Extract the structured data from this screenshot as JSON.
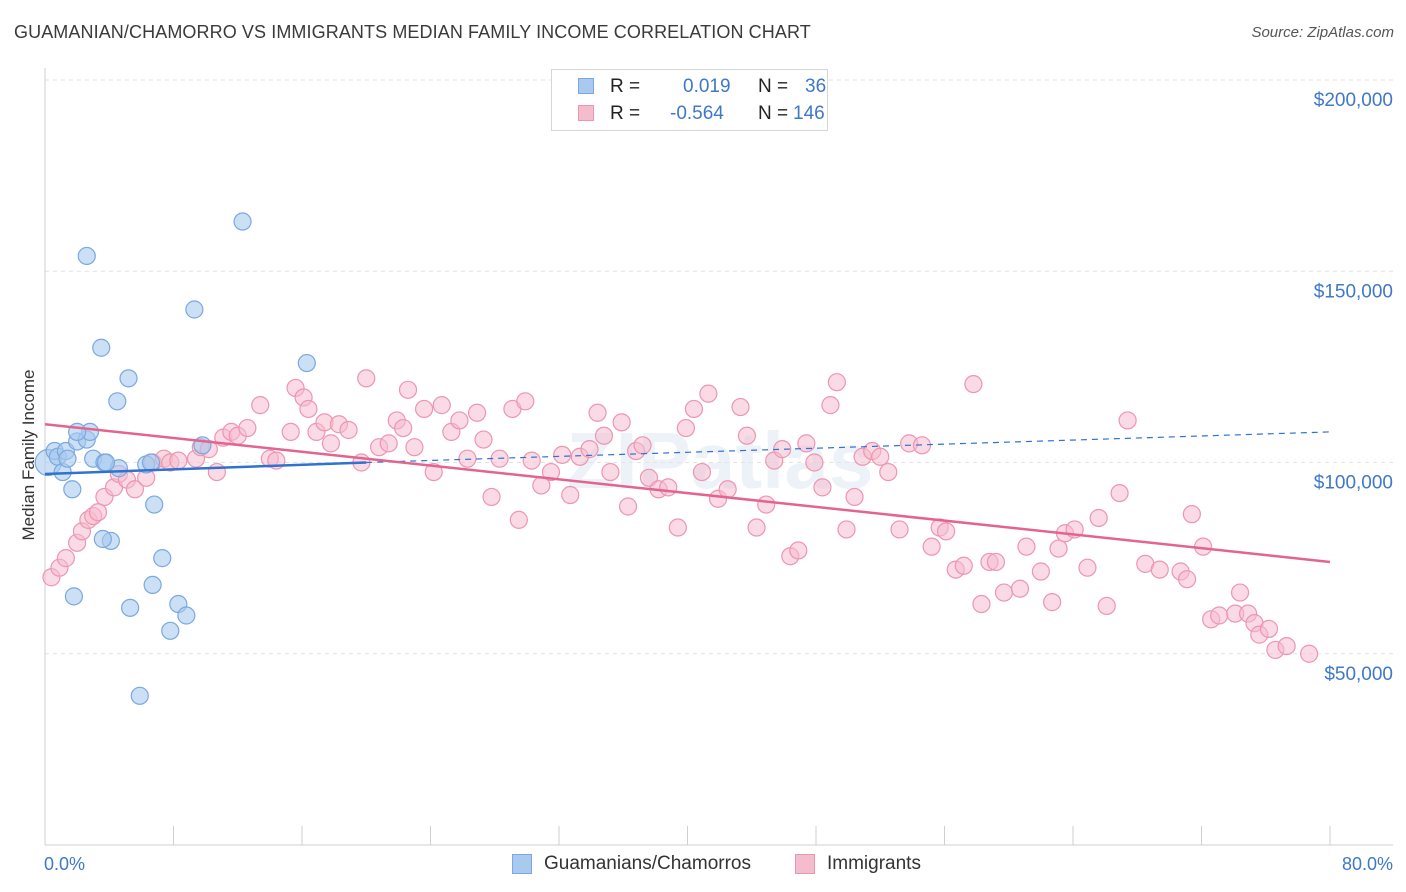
{
  "title": "GUAMANIAN/CHAMORRO VS IMMIGRANTS MEDIAN FAMILY INCOME CORRELATION CHART",
  "source": "Source: ZipAtlas.com",
  "watermark": "ZIPatlas",
  "legend": {
    "rows": [
      {
        "r_label": "R =",
        "r_value": "0.019",
        "n_label": "N =",
        "n_value": "36"
      },
      {
        "r_label": "R =",
        "r_value": "-0.564",
        "n_label": "N =",
        "n_value": "146"
      }
    ]
  },
  "bottom_legend": [
    "Guamanians/Chamorros",
    "Immigrants"
  ],
  "colors": {
    "blue_fill": "#a9c9ef",
    "blue_stroke": "#7aa8e0",
    "blue_line": "#2f72d0",
    "pink_fill": "#f5bccd",
    "pink_stroke": "#ee95b1",
    "pink_line": "#e2648f",
    "tick_text": "#3f78c8",
    "grid": "#e2e2e2"
  },
  "chart_data": {
    "type": "scatter",
    "title": "GUAMANIAN/CHAMORRO VS IMMIGRANTS MEDIAN FAMILY INCOME CORRELATION CHART",
    "xlabel": "",
    "ylabel": "Median Family Income",
    "xlim": [
      0,
      80
    ],
    "ylim": [
      0,
      210000
    ],
    "x_tick_labels": [
      "0.0%",
      "80.0%"
    ],
    "y_ticks": [
      {
        "value": 50000,
        "label": "$50,000"
      },
      {
        "value": 100000,
        "label": "$100,000"
      },
      {
        "value": 150000,
        "label": "$150,000"
      },
      {
        "value": 200000,
        "label": "$200,000"
      }
    ],
    "grid": true,
    "series": [
      {
        "name": "Guamanians/Chamorros",
        "R": 0.019,
        "N": 36,
        "trend": {
          "x0": 0,
          "y0": 97000,
          "x1": 20,
          "y1": 100000,
          "dash_to_x": 80,
          "dash_to_y": 108000
        },
        "points": [
          [
            0.2,
            100000
          ],
          [
            0.6,
            103000
          ],
          [
            0.8,
            101500
          ],
          [
            1.1,
            97500
          ],
          [
            1.3,
            103000
          ],
          [
            1.7,
            93000
          ],
          [
            2.0,
            105500
          ],
          [
            1.4,
            101000
          ],
          [
            2.6,
            106000
          ],
          [
            2.8,
            108000
          ],
          [
            3.0,
            101000
          ],
          [
            2.0,
            108000
          ],
          [
            3.7,
            100000
          ],
          [
            4.6,
            98500
          ],
          [
            4.5,
            116000
          ],
          [
            5.2,
            122000
          ],
          [
            6.3,
            99500
          ],
          [
            6.8,
            89000
          ],
          [
            9.8,
            104500
          ],
          [
            7.3,
            75000
          ],
          [
            8.3,
            63000
          ],
          [
            6.7,
            68000
          ],
          [
            4.1,
            79500
          ],
          [
            3.8,
            100000
          ],
          [
            3.6,
            80000
          ],
          [
            1.8,
            65000
          ],
          [
            5.3,
            62000
          ],
          [
            8.8,
            60000
          ],
          [
            7.8,
            56000
          ],
          [
            5.9,
            39000
          ],
          [
            3.5,
            130000
          ],
          [
            9.3,
            140000
          ],
          [
            12.3,
            163000
          ],
          [
            2.6,
            154000
          ],
          [
            16.3,
            126000
          ],
          [
            6.6,
            100000
          ]
        ]
      },
      {
        "name": "Immigrants",
        "R": -0.564,
        "N": 146,
        "trend": {
          "x0": 0,
          "y0": 110000,
          "x1": 80,
          "y1": 74000
        },
        "points": [
          [
            0.4,
            70000
          ],
          [
            0.9,
            72500
          ],
          [
            1.3,
            75000
          ],
          [
            2.0,
            79000
          ],
          [
            2.3,
            82000
          ],
          [
            2.7,
            85000
          ],
          [
            3.0,
            86000
          ],
          [
            3.3,
            87000
          ],
          [
            3.7,
            91000
          ],
          [
            4.3,
            93500
          ],
          [
            4.6,
            97000
          ],
          [
            5.1,
            95500
          ],
          [
            5.6,
            93000
          ],
          [
            6.3,
            96000
          ],
          [
            6.7,
            100000
          ],
          [
            7.4,
            101000
          ],
          [
            7.8,
            100000
          ],
          [
            8.3,
            100500
          ],
          [
            9.4,
            101000
          ],
          [
            9.7,
            104000
          ],
          [
            10.2,
            103500
          ],
          [
            10.7,
            97500
          ],
          [
            11.1,
            106500
          ],
          [
            11.6,
            108000
          ],
          [
            12.0,
            107000
          ],
          [
            12.6,
            109000
          ],
          [
            13.4,
            115000
          ],
          [
            14.0,
            101000
          ],
          [
            14.4,
            100500
          ],
          [
            15.3,
            108000
          ],
          [
            15.6,
            119500
          ],
          [
            16.1,
            117000
          ],
          [
            16.4,
            114000
          ],
          [
            16.9,
            108000
          ],
          [
            17.4,
            110500
          ],
          [
            17.8,
            105000
          ],
          [
            18.3,
            110000
          ],
          [
            18.9,
            108500
          ],
          [
            19.7,
            100000
          ],
          [
            20.0,
            122000
          ],
          [
            20.8,
            104000
          ],
          [
            21.4,
            105000
          ],
          [
            21.9,
            111000
          ],
          [
            22.3,
            109000
          ],
          [
            22.6,
            119000
          ],
          [
            23.0,
            104000
          ],
          [
            23.6,
            114000
          ],
          [
            24.2,
            97500
          ],
          [
            24.7,
            115000
          ],
          [
            25.3,
            108000
          ],
          [
            25.8,
            111000
          ],
          [
            26.3,
            101000
          ],
          [
            26.9,
            113000
          ],
          [
            27.3,
            106000
          ],
          [
            27.8,
            91000
          ],
          [
            28.3,
            101000
          ],
          [
            29.1,
            114000
          ],
          [
            29.5,
            85000
          ],
          [
            29.9,
            116000
          ],
          [
            30.3,
            100500
          ],
          [
            30.9,
            94000
          ],
          [
            31.5,
            97500
          ],
          [
            32.2,
            102000
          ],
          [
            32.7,
            91500
          ],
          [
            33.3,
            101500
          ],
          [
            33.9,
            103500
          ],
          [
            34.4,
            113000
          ],
          [
            34.8,
            107000
          ],
          [
            35.2,
            97500
          ],
          [
            35.9,
            110500
          ],
          [
            36.3,
            88500
          ],
          [
            36.8,
            103000
          ],
          [
            37.2,
            104500
          ],
          [
            37.6,
            96000
          ],
          [
            38.2,
            93000
          ],
          [
            38.8,
            93500
          ],
          [
            39.4,
            83000
          ],
          [
            39.9,
            109000
          ],
          [
            40.4,
            114000
          ],
          [
            40.9,
            97500
          ],
          [
            41.3,
            118000
          ],
          [
            41.9,
            90500
          ],
          [
            42.5,
            93000
          ],
          [
            43.3,
            114500
          ],
          [
            43.7,
            107000
          ],
          [
            44.3,
            83000
          ],
          [
            44.9,
            89000
          ],
          [
            45.4,
            100500
          ],
          [
            45.9,
            103500
          ],
          [
            46.4,
            75500
          ],
          [
            46.9,
            77000
          ],
          [
            47.4,
            105000
          ],
          [
            47.9,
            100000
          ],
          [
            48.4,
            93500
          ],
          [
            48.9,
            115000
          ],
          [
            49.3,
            121000
          ],
          [
            49.9,
            82500
          ],
          [
            50.4,
            91000
          ],
          [
            50.9,
            101500
          ],
          [
            51.5,
            103000
          ],
          [
            52.0,
            101500
          ],
          [
            52.5,
            97500
          ],
          [
            53.2,
            82500
          ],
          [
            53.8,
            105000
          ],
          [
            54.6,
            104500
          ],
          [
            55.2,
            78000
          ],
          [
            55.7,
            83000
          ],
          [
            56.1,
            82000
          ],
          [
            56.7,
            72000
          ],
          [
            57.2,
            73000
          ],
          [
            57.8,
            120500
          ],
          [
            58.3,
            63000
          ],
          [
            58.8,
            74000
          ],
          [
            59.2,
            74000
          ],
          [
            59.7,
            66000
          ],
          [
            60.7,
            67000
          ],
          [
            61.1,
            78000
          ],
          [
            62.0,
            71500
          ],
          [
            62.7,
            63500
          ],
          [
            63.1,
            77500
          ],
          [
            63.5,
            81500
          ],
          [
            64.1,
            82500
          ],
          [
            64.9,
            72500
          ],
          [
            65.6,
            85500
          ],
          [
            66.1,
            62500
          ],
          [
            66.9,
            92000
          ],
          [
            67.4,
            111000
          ],
          [
            68.5,
            73500
          ],
          [
            69.4,
            72000
          ],
          [
            70.7,
            71500
          ],
          [
            71.1,
            69500
          ],
          [
            71.4,
            86500
          ],
          [
            72.1,
            78000
          ],
          [
            72.6,
            59000
          ],
          [
            73.1,
            60000
          ],
          [
            74.1,
            60500
          ],
          [
            74.4,
            66000
          ],
          [
            74.9,
            60500
          ],
          [
            75.3,
            58000
          ],
          [
            75.6,
            55000
          ],
          [
            76.2,
            56500
          ],
          [
            76.6,
            51000
          ],
          [
            77.3,
            52000
          ],
          [
            78.7,
            50000
          ]
        ]
      }
    ]
  }
}
